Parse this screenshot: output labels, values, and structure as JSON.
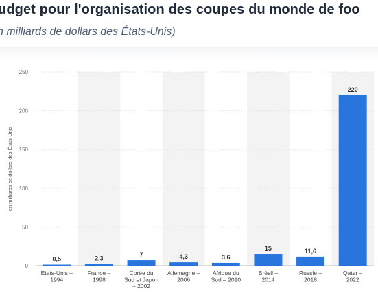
{
  "header": {
    "title": "udget pour l'organisation des coupes du monde de foo",
    "subtitle": "n milliards de dollars des États-Unis)"
  },
  "chart_data": {
    "type": "bar",
    "categories": [
      [
        "États-Unis –",
        "1994"
      ],
      [
        "France –",
        "1998"
      ],
      [
        "Corée du",
        "Sud et Japon",
        "– 2002"
      ],
      [
        "Allemagne –",
        "2006"
      ],
      [
        "Afrique du",
        "Sud – 2010"
      ],
      [
        "Brésil –",
        "2014"
      ],
      [
        "Russie –",
        "2018"
      ],
      [
        "Qatar –",
        "2022"
      ]
    ],
    "values": [
      0.5,
      2.3,
      7,
      4.3,
      3.6,
      15,
      11.6,
      220
    ],
    "value_labels": [
      "0,5",
      "2,3",
      "7",
      "4,3",
      "3,6",
      "15",
      "11,6",
      "220"
    ],
    "ylabel": "en milliards de dollars des États-Unis",
    "ylim": [
      0,
      250
    ],
    "yticks": [
      0,
      50,
      100,
      150,
      200,
      250
    ],
    "grid": true,
    "bar_color": "#2876dd",
    "band_color": "#f3f3f3"
  }
}
